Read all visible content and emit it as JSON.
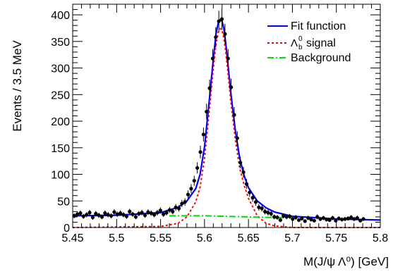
{
  "chart_data": {
    "type": "scatter",
    "title": "",
    "xlabel": "M(J/ψ  Λ⁰) [GeV]",
    "ylabel": "Events / 3.5 MeV",
    "xlim": [
      5.45,
      5.8
    ],
    "ylim": [
      0,
      420
    ],
    "grid": false,
    "legend_position": "top-right",
    "x_ticks": [
      5.45,
      5.5,
      5.55,
      5.6,
      5.65,
      5.7,
      5.75,
      5.8
    ],
    "x_tick_labels": [
      "5.45",
      "5.5",
      "5.55",
      "5.6",
      "5.65",
      "5.7",
      "5.75",
      "5.8"
    ],
    "y_ticks": [
      0,
      50,
      100,
      150,
      200,
      250,
      300,
      350,
      400
    ],
    "y_tick_labels": [
      "0",
      "50",
      "100",
      "150",
      "200",
      "250",
      "300",
      "350",
      "400"
    ],
    "legend": [
      {
        "label": "Fit function",
        "style": "solid",
        "color": "#0000ff"
      },
      {
        "label": "signal",
        "style": "dotted",
        "color": "#ff0000"
      },
      {
        "label": "Background",
        "style": "dashdot",
        "color": "#00dd00"
      }
    ],
    "series": [
      {
        "kind": "points",
        "color": "#000000",
        "x": [
          5.4518,
          5.4553,
          5.4588,
          5.4623,
          5.4658,
          5.4693,
          5.4728,
          5.4763,
          5.4798,
          5.4833,
          5.4868,
          5.4903,
          5.4938,
          5.4973,
          5.5008,
          5.5043,
          5.5078,
          5.5113,
          5.5148,
          5.5183,
          5.5218,
          5.5253,
          5.5288,
          5.5323,
          5.5358,
          5.5393,
          5.5428,
          5.5463,
          5.5498,
          5.5533,
          5.5568,
          5.5603,
          5.5638,
          5.5673,
          5.5708,
          5.5743,
          5.5778,
          5.5813,
          5.5848,
          5.5883,
          5.5918,
          5.5953,
          5.5988,
          5.6023,
          5.6058,
          5.6093,
          5.6128,
          5.6163,
          5.6198,
          5.6233,
          5.6268,
          5.6303,
          5.6338,
          5.6373,
          5.6408,
          5.6443,
          5.6478,
          5.6513,
          5.6548,
          5.6583,
          5.6618,
          5.6653,
          5.6688,
          5.6723,
          5.6758,
          5.6793,
          5.6828,
          5.6863,
          5.6898,
          5.6933,
          5.6968,
          5.7003,
          5.7038,
          5.7073,
          5.7108,
          5.7143,
          5.7178,
          5.7213,
          5.7248,
          5.7283,
          5.7318,
          5.7353,
          5.7388,
          5.7423,
          5.7458,
          5.7493,
          5.7528,
          5.7563,
          5.7598,
          5.7633,
          5.7668,
          5.7703,
          5.7738,
          5.7773,
          5.7808
        ],
        "y": [
          22,
          25,
          27,
          21,
          24,
          28,
          19,
          26,
          23,
          20,
          27,
          24,
          22,
          29,
          25,
          27,
          24,
          21,
          30,
          25,
          20,
          26,
          28,
          23,
          29,
          27,
          24,
          28,
          32,
          25,
          28,
          33,
          30,
          38,
          36,
          45,
          48,
          62,
          73,
          88,
          112,
          142,
          175,
          218,
          262,
          318,
          358,
          388,
          392,
          364,
          318,
          264,
          212,
          168,
          122,
          104,
          82,
          66,
          56,
          48,
          38,
          36,
          30,
          28,
          26,
          20,
          19,
          14,
          22,
          20,
          21,
          16,
          19,
          14,
          17,
          12,
          18,
          15,
          13,
          20,
          16,
          18,
          15,
          14,
          18,
          13,
          17,
          15,
          16,
          17,
          19,
          16,
          18,
          13,
          16
        ],
        "y_error": [
          4.7,
          5,
          5.2,
          4.6,
          4.9,
          5.3,
          4.4,
          5.1,
          4.8,
          4.5,
          5.2,
          4.9,
          4.7,
          5.4,
          5,
          5.2,
          4.9,
          4.6,
          5.5,
          5,
          4.5,
          5.1,
          5.3,
          4.8,
          5.4,
          5.2,
          4.9,
          5.3,
          5.7,
          5,
          5.3,
          5.7,
          5.5,
          6.2,
          6,
          6.7,
          6.9,
          7.9,
          8.5,
          9.4,
          10.6,
          11.9,
          13.2,
          14.8,
          16.2,
          17.8,
          18.9,
          19.7,
          19.8,
          19.1,
          17.8,
          16.2,
          14.6,
          13,
          11,
          10.2,
          9.1,
          8.1,
          7.5,
          6.9,
          6.2,
          6,
          5.5,
          5.3,
          5.1,
          4.5,
          4.4,
          3.7,
          4.7,
          4.5,
          4.6,
          4,
          4.4,
          3.7,
          4.1,
          3.5,
          4.2,
          3.9,
          3.6,
          4.5,
          4,
          4.2,
          3.9,
          3.7,
          4.2,
          3.6,
          4.1,
          3.9,
          4,
          4.1,
          4.4,
          4,
          4.2,
          3.6,
          4
        ]
      },
      {
        "name": "Fit function",
        "kind": "curve",
        "color": "#0000ff",
        "x": [
          5.45,
          5.5,
          5.55,
          5.57,
          5.58,
          5.59,
          5.595,
          5.6,
          5.605,
          5.61,
          5.613,
          5.616,
          5.618,
          5.62,
          5.622,
          5.624,
          5.627,
          5.63,
          5.635,
          5.64,
          5.645,
          5.65,
          5.66,
          5.67,
          5.68,
          5.7,
          5.75,
          5.8
        ],
        "y": [
          22,
          23,
          28,
          38,
          50,
          73,
          100,
          152,
          232,
          316,
          364,
          388,
          391,
          388,
          374,
          348,
          302,
          252,
          183,
          131,
          98,
          75,
          50,
          37,
          29,
          21,
          16,
          14
        ]
      },
      {
        "name": "signal",
        "kind": "curve",
        "color": "#ff0000",
        "x": [
          5.45,
          5.55,
          5.57,
          5.58,
          5.59,
          5.595,
          5.6,
          5.605,
          5.61,
          5.613,
          5.616,
          5.618,
          5.62,
          5.622,
          5.624,
          5.627,
          5.63,
          5.635,
          5.64,
          5.645,
          5.65,
          5.66,
          5.67,
          5.68,
          5.7,
          5.8
        ],
        "y": [
          0,
          2,
          8,
          20,
          48,
          76,
          130,
          212,
          298,
          346,
          370,
          374,
          370,
          356,
          332,
          286,
          236,
          166,
          112,
          80,
          55,
          22,
          8,
          3,
          0,
          0
        ]
      },
      {
        "name": "Background",
        "kind": "curve",
        "color": "#00dd00",
        "x": [
          5.56,
          5.6,
          5.65,
          5.7
        ],
        "y": [
          22,
          22,
          20,
          18
        ]
      }
    ]
  }
}
